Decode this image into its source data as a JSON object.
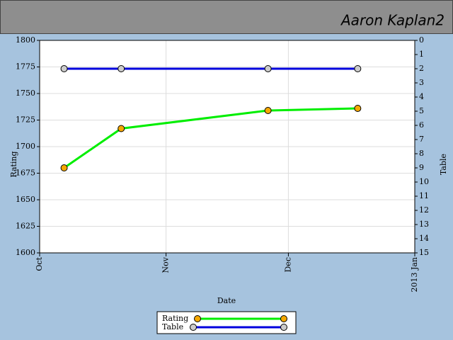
{
  "header": {
    "title": "Aaron Kaplan2"
  },
  "chart_data": {
    "type": "line",
    "x_label": "Date",
    "y_label": "Rating",
    "y2_label": "Table",
    "xlim": [
      0,
      92
    ],
    "xticks": [
      {
        "value": 0,
        "label": "Oct"
      },
      {
        "value": 31,
        "label": "Nov"
      },
      {
        "value": 61,
        "label": "Dec"
      },
      {
        "value": 92,
        "label": "2013 Jan"
      }
    ],
    "x": [
      6,
      20,
      56,
      78
    ],
    "ylim": [
      1600,
      1800
    ],
    "yticks": [
      1600,
      1625,
      1650,
      1675,
      1700,
      1725,
      1750,
      1775,
      1800
    ],
    "y2lim": [
      15,
      0
    ],
    "y2ticks": [
      0,
      1,
      2,
      3,
      4,
      5,
      6,
      7,
      8,
      9,
      10,
      11,
      12,
      13,
      14,
      15
    ],
    "grid": true,
    "legend": "bottom",
    "series": [
      {
        "name": "Rating",
        "color": "#00ee00",
        "marker_color": "#f5a800",
        "values": [
          1680,
          1717,
          1734,
          1736
        ]
      },
      {
        "name": "Table",
        "color": "#0000dd",
        "marker_color": "#cccccc",
        "axis": "y2",
        "values": [
          2,
          2,
          2,
          2
        ]
      }
    ]
  }
}
